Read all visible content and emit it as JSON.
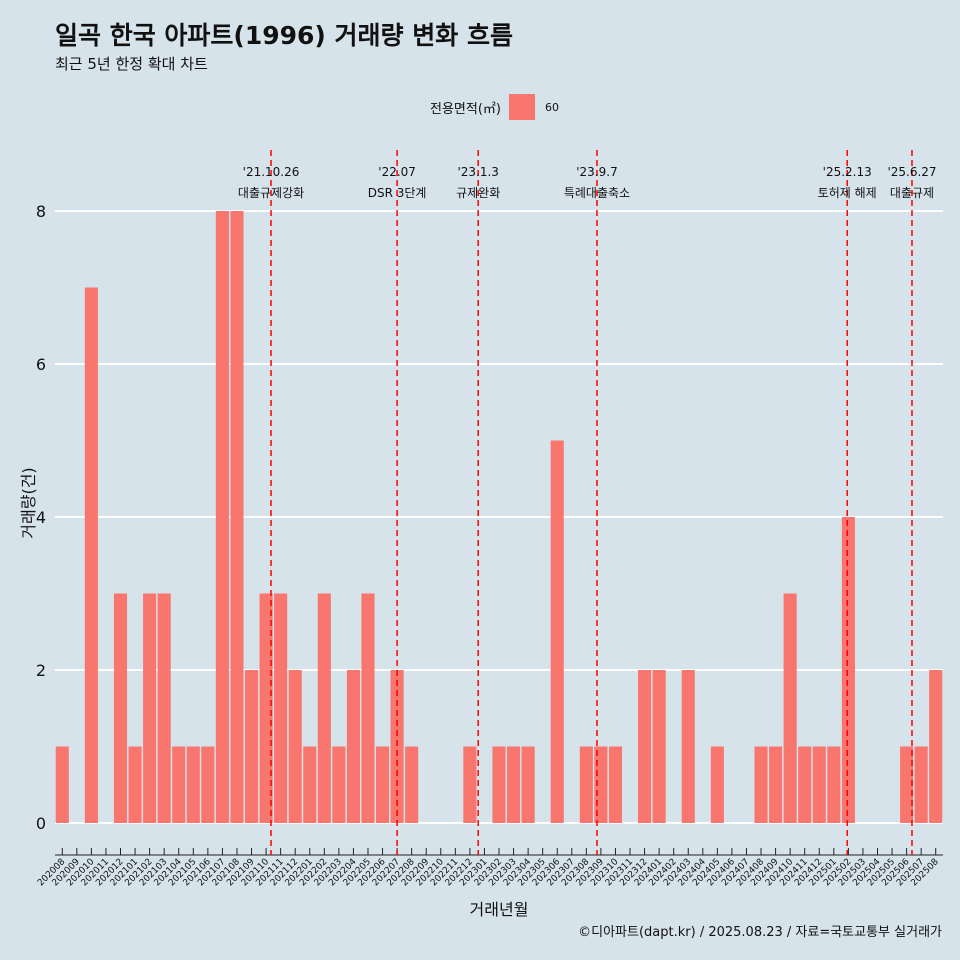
{
  "title": "일곡 한국 아파트(1996) 거래량 변화 흐름",
  "subtitle": "최근 5년 한정 확대 차트",
  "caption": "©디아파트(dapt.kr) / 2025.08.23 / 자료=국토교통부 실거래가",
  "legend": {
    "title": "전용면적(㎡)",
    "label": "60",
    "color": "#f8766d"
  },
  "chart_data": {
    "type": "bar",
    "xlabel": "거래년월",
    "ylabel": "거래량(건)",
    "ylim": [
      0,
      8
    ],
    "yticks": [
      0,
      2,
      4,
      6,
      8
    ],
    "grid": true,
    "legend_position": "top",
    "bar_color": "#f8766d",
    "background": "#d6e3ea",
    "categories": [
      "202008",
      "202009",
      "202010",
      "202011",
      "202012",
      "202101",
      "202102",
      "202103",
      "202104",
      "202105",
      "202106",
      "202107",
      "202108",
      "202109",
      "202110",
      "202111",
      "202112",
      "202201",
      "202202",
      "202203",
      "202204",
      "202205",
      "202206",
      "202207",
      "202208",
      "202209",
      "202210",
      "202211",
      "202212",
      "202301",
      "202302",
      "202303",
      "202304",
      "202305",
      "202306",
      "202307",
      "202308",
      "202309",
      "202310",
      "202311",
      "202312",
      "202401",
      "202402",
      "202403",
      "202404",
      "202405",
      "202406",
      "202407",
      "202408",
      "202409",
      "202410",
      "202411",
      "202412",
      "202501",
      "202502",
      "202503",
      "202504",
      "202505",
      "202506",
      "202507",
      "202508"
    ],
    "series": [
      {
        "values": [
          1,
          0,
          7,
          0,
          3,
          1,
          3,
          3,
          1,
          1,
          1,
          8,
          8,
          2,
          3,
          3,
          2,
          1,
          3,
          1,
          2,
          3,
          1,
          2,
          1,
          0,
          0,
          0,
          1,
          0,
          1,
          1,
          1,
          0,
          5,
          0,
          1,
          1,
          1,
          0,
          2,
          2,
          0,
          2,
          0,
          1,
          0,
          0,
          1,
          1,
          3,
          1,
          1,
          1,
          4,
          0,
          0,
          0,
          1,
          1,
          2
        ]
      }
    ],
    "annotations": [
      {
        "date": "'21.10.26",
        "label": "대출규제강화",
        "category": "202110",
        "frac": 0.84
      },
      {
        "date": "'22.07",
        "label": "DSR 3단계",
        "category": "202207",
        "frac": 0.5
      },
      {
        "date": "'23.1.3",
        "label": "규제완화",
        "category": "202301",
        "frac": 0.07
      },
      {
        "date": "'23.9.7",
        "label": "특례대출축소",
        "category": "202309",
        "frac": 0.23
      },
      {
        "date": "'25.2.13",
        "label": "토허제 해제",
        "category": "202502",
        "frac": 0.42
      },
      {
        "date": "'25.6.27",
        "label": "대출규제",
        "category": "202506",
        "frac": 0.87
      }
    ],
    "annotation_color": "#ff0000"
  }
}
